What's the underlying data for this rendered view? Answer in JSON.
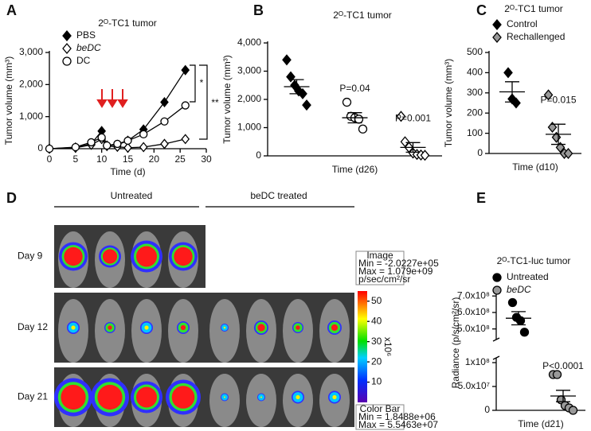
{
  "chart_data": [
    {
      "type": "line",
      "panel": "A",
      "title": "2ᴼ-TC1 tumor",
      "x_label": "Time (d)",
      "y_label": "Tumor volume (mm³)",
      "x": [
        0,
        5,
        8,
        10,
        11,
        13,
        15,
        18,
        22,
        26
      ],
      "series": [
        {
          "name": "PBS",
          "marker": "diamond",
          "color": "#000000",
          "values": [
            0,
            40,
            150,
            550,
            100,
            120,
            250,
            600,
            1450,
            2450
          ]
        },
        {
          "name": "beDC",
          "font_style": "italic",
          "marker": "diamond",
          "color": "#ffffff",
          "values": [
            0,
            30,
            120,
            300,
            80,
            60,
            30,
            50,
            150,
            300
          ]
        },
        {
          "name": "DC",
          "marker": "circle",
          "color": "#ffffff",
          "values": [
            0,
            50,
            200,
            350,
            100,
            150,
            250,
            450,
            850,
            1350
          ]
        }
      ],
      "xlim": [
        0,
        30
      ],
      "xticks": [
        0,
        5,
        10,
        15,
        20,
        25,
        30
      ],
      "ylim": [
        0,
        3000
      ],
      "yticks": [
        0,
        {
          "value": 1000,
          "label": "1,000"
        },
        {
          "value": 2000,
          "label": "2,000"
        },
        {
          "value": 3000,
          "label": "3,000"
        }
      ],
      "annotations": [
        "*",
        "**"
      ]
    },
    {
      "type": "dot",
      "panel": "B",
      "title": "2ᴼ-TC1 tumor",
      "x_label": "Time (d26)",
      "y_label": "Tumor volume (mm³)",
      "groups": [
        {
          "marker": "diamond",
          "color": "#000000",
          "values": [
            3400,
            2800,
            2500,
            2300,
            2200,
            1800
          ],
          "mean": 2450,
          "sem": 250
        },
        {
          "marker": "circle",
          "color": "#ffffff",
          "values": [
            1900,
            1400,
            1350,
            1300,
            950
          ],
          "mean": 1350,
          "sem": 180
        },
        {
          "marker": "diamond",
          "color": "#ffffff",
          "values": [
            1400,
            500,
            300,
            100,
            50,
            30,
            20
          ],
          "mean": 300,
          "sem": 170
        }
      ],
      "ylim": [
        0,
        4000
      ],
      "yticks": [
        0,
        {
          "value": 1000,
          "label": "1,000"
        },
        {
          "value": 2000,
          "label": "2,000"
        },
        {
          "value": 3000,
          "label": "3,000"
        },
        {
          "value": 4000,
          "label": "4,000"
        }
      ],
      "annotations": [
        "P=0.04",
        "P=0.001"
      ]
    },
    {
      "type": "dot",
      "panel": "C",
      "title": "2ᴼ-TC1 tumor",
      "x_label": "Time (d10)",
      "y_label": "Tumor volume (mm³)",
      "groups": [
        {
          "name": "Control",
          "marker": "diamond",
          "color": "#000000",
          "values": [
            400,
            270,
            250
          ],
          "mean": 305,
          "sem": 50
        },
        {
          "name": "Rechallenged",
          "marker": "diamond",
          "color": "#999999",
          "values": [
            290,
            130,
            80,
            30,
            0,
            0
          ],
          "mean": 95,
          "sem": 50
        }
      ],
      "ylim": [
        0,
        500
      ],
      "yticks": [
        0,
        100,
        200,
        300,
        400,
        500
      ],
      "annotations": [
        "P=0.015"
      ]
    },
    {
      "type": "dot",
      "panel": "E",
      "title": "2ᴼ-TC1-luc tumor",
      "x_label": "Time (d21)",
      "y_label": "Radiance (p/s/cm²/sr)",
      "groups": [
        {
          "name": "Untreated",
          "marker": "circle",
          "color": "#000000",
          "values": [
            660000000,
            570000000,
            550000000,
            480000000
          ],
          "mean": 565000000,
          "sem": 40000000
        },
        {
          "name": "beDC",
          "font_style": "italic",
          "marker": "circle",
          "color": "#999999",
          "values": [
            75000000,
            75000000,
            22000000,
            10000000,
            5000000,
            0
          ],
          "mean": 30000000,
          "sem": 12000000
        }
      ],
      "ylim": [
        0,
        730000000
      ],
      "y_break": [
        105000000,
        450000000
      ],
      "yticks": [
        0,
        {
          "value": 50000000,
          "label": "5.0x10⁷"
        },
        {
          "value": 100000000,
          "label": "1x10⁸"
        },
        {
          "value": 500000000,
          "label": "5.0x10⁸"
        },
        {
          "value": 600000000,
          "label": "6.0x10⁸"
        },
        {
          "value": 700000000,
          "label": "7.0x10⁸"
        }
      ],
      "annotations": [
        "P<0.0001"
      ]
    }
  ],
  "panel_d": {
    "panel": "D",
    "columns": [
      "Untreated",
      "beDC treated"
    ],
    "rows": [
      "Day 9",
      "Day 12",
      "Day 21"
    ],
    "image_box": [
      "Image",
      "Min = -2.0227e+05",
      "Max = 1.079e+09",
      "p/sec/cm²/sr"
    ],
    "color_bar_box": [
      "Color Bar",
      "Min = 1.8488e+06",
      "Max = 5.5463e+07"
    ],
    "color_bar_lim": [
      0,
      55
    ],
    "color_bar_ticks": [
      10,
      20,
      30,
      40,
      50
    ],
    "color_bar_unit": "x10⁶"
  }
}
